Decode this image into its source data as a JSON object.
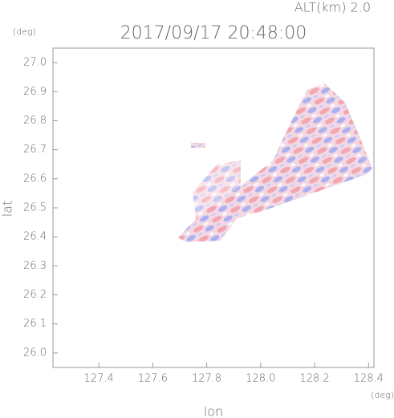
{
  "chart_data": {
    "type": "radar-field",
    "title": "2017/09/17 20:48:00",
    "annotation": "ALT(km) 2.0",
    "xlabel": "lon",
    "ylabel": "lat",
    "x_unit": "(deg)",
    "y_unit": "(deg)",
    "xlim": [
      127.23,
      128.42
    ],
    "xticks": [
      127.4,
      127.6,
      127.8,
      {
        "value": 128,
        "label": "128.0"
      },
      128.2,
      128.4
    ],
    "ylim": [
      25.95,
      27.05
    ],
    "yticks": [
      {
        "value": 26,
        "label": "26.0"
      },
      26.1,
      26.2,
      26.3,
      26.4,
      26.5,
      26.6,
      26.7,
      26.8,
      26.9,
      {
        "value": 27,
        "label": "27.0"
      }
    ]
  }
}
